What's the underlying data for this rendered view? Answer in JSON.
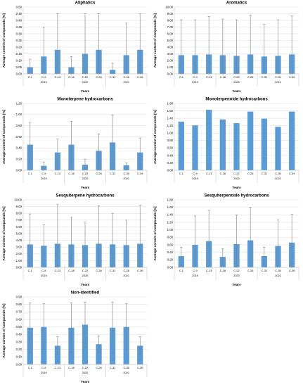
{
  "common": {
    "xlabel": "Years",
    "ylabel": "Average content of compounds  [%]",
    "categories": [
      "C-1",
      "C-9",
      "C-13",
      "C-18",
      "C-22",
      "C-26",
      "C-31",
      "C-35",
      "C-39"
    ],
    "groups": [
      {
        "label": "2019",
        "from": 0,
        "to": 2
      },
      {
        "label": "2020",
        "from": 3,
        "to": 5
      },
      {
        "label": "2021",
        "from": 6,
        "to": 8
      }
    ],
    "bar_color": "#5b9bd5",
    "error_color": "#7f7f7f"
  },
  "chart_data": [
    {
      "type": "bar",
      "title": "Aliphatics",
      "ylim": [
        0,
        0.5
      ],
      "yticks": [
        "0.00",
        "0.05",
        "0.10",
        "0.15",
        "0.20",
        "0.25",
        "0.30",
        "0.35",
        "0.40",
        "0.45",
        "0.50"
      ],
      "values": [
        0.05,
        0.13,
        0.18,
        0.05,
        0.15,
        0.18,
        0.03,
        0.14,
        0.18
      ],
      "error_upper": [
        0.11,
        0.35,
        0.45,
        0.13,
        0.45,
        0.45,
        0.08,
        0.38,
        0.45
      ],
      "error_lower": [
        0.0,
        0.0,
        0.0,
        0.0,
        0.0,
        0.0,
        0.0,
        0.0,
        0.0
      ]
    },
    {
      "type": "bar",
      "title": "Aromatics",
      "ylim": [
        0,
        10
      ],
      "yticks": [
        "0.00",
        "1.00",
        "2.00",
        "3.00",
        "4.00",
        "5.00",
        "6.00",
        "7.00",
        "8.00",
        "9.00",
        "10.00"
      ],
      "values": [
        2.8,
        2.8,
        2.9,
        2.8,
        2.7,
        2.9,
        2.6,
        2.7,
        2.9
      ],
      "error_upper": [
        8.1,
        8.1,
        8.6,
        8.2,
        8.1,
        8.8,
        7.4,
        8.1,
        8.7
      ],
      "error_lower": [
        0.0,
        0.0,
        0.0,
        0.0,
        0.0,
        0.0,
        0.0,
        0.0,
        0.0
      ]
    },
    {
      "type": "bar",
      "title": "Monoterpene hydrocarbons",
      "ylim": [
        0,
        1.2
      ],
      "yticks": [
        "0.00",
        "0.20",
        "0.40",
        "0.60",
        "0.80",
        "1.00",
        "1.20"
      ],
      "values": [
        0.46,
        0.08,
        0.32,
        0.46,
        0.1,
        0.35,
        0.5,
        0.09,
        0.32
      ],
      "error_upper": [
        0.86,
        0.15,
        0.56,
        0.88,
        0.2,
        0.65,
        0.99,
        0.13,
        0.58
      ],
      "error_lower": [
        0.0,
        0.0,
        0.0,
        0.0,
        0.0,
        0.0,
        0.0,
        0.0,
        0.0
      ]
    },
    {
      "type": "bar",
      "title": "Monoterpenoide hydrocarbons",
      "ylim": [
        0,
        1.8
      ],
      "yticks": [
        "0.00",
        "0.20",
        "0.40",
        "0.60",
        "0.80",
        "1.00",
        "1.20",
        "1.40",
        "1.60",
        "1.80"
      ],
      "values": [
        1.31,
        1.21,
        1.63,
        1.37,
        1.27,
        1.58,
        1.39,
        1.17,
        1.58
      ],
      "error_upper": null,
      "error_lower": null
    },
    {
      "type": "bar",
      "title": "Sesquiterpene hydrocarbons",
      "ylim": [
        0,
        10
      ],
      "yticks": [
        "0.00",
        "1.00",
        "2.00",
        "3.00",
        "4.00",
        "5.00",
        "6.00",
        "7.00",
        "8.00",
        "9.00",
        "10.00"
      ],
      "values": [
        3.4,
        3.2,
        3.5,
        3.4,
        3.3,
        3.5,
        3.4,
        3.3,
        3.5
      ],
      "error_upper": [
        7.9,
        6.3,
        9.3,
        7.4,
        6.7,
        9.1,
        8.0,
        7.0,
        9.2
      ],
      "error_lower": [
        0.0,
        0.0,
        0.0,
        0.0,
        0.0,
        0.0,
        0.0,
        0.0,
        0.0
      ]
    },
    {
      "type": "bar",
      "title": "Sesquiterpenoide hydrocarbons",
      "ylim": [
        0,
        1.8
      ],
      "yticks": [
        "0.00",
        "0.20",
        "0.40",
        "0.60",
        "0.80",
        "1.00",
        "1.20",
        "1.40",
        "1.60",
        "1.80"
      ],
      "values": [
        0.3,
        0.6,
        0.7,
        0.28,
        0.62,
        0.72,
        0.3,
        0.57,
        0.66
      ],
      "error_upper": [
        0.54,
        1.37,
        1.52,
        0.5,
        1.4,
        1.6,
        0.54,
        1.27,
        1.42
      ],
      "error_lower": [
        0.05,
        0.0,
        0.0,
        0.06,
        0.0,
        0.0,
        0.06,
        0.0,
        0.0
      ]
    },
    {
      "type": "bar",
      "title": "Non-identified",
      "ylim": [
        0,
        0.9
      ],
      "yticks": [
        "0.00",
        "0.10",
        "0.20",
        "0.30",
        "0.40",
        "0.50",
        "0.60",
        "0.70",
        "0.80",
        "0.90"
      ],
      "values": [
        0.49,
        0.5,
        0.25,
        0.49,
        0.53,
        0.27,
        0.49,
        0.5,
        0.25
      ],
      "error_upper": [
        0.82,
        0.81,
        0.37,
        0.82,
        0.83,
        0.38,
        0.83,
        0.81,
        0.37
      ],
      "error_lower": [
        0.16,
        0.2,
        0.13,
        0.16,
        0.23,
        0.16,
        0.16,
        0.19,
        0.13
      ]
    }
  ]
}
